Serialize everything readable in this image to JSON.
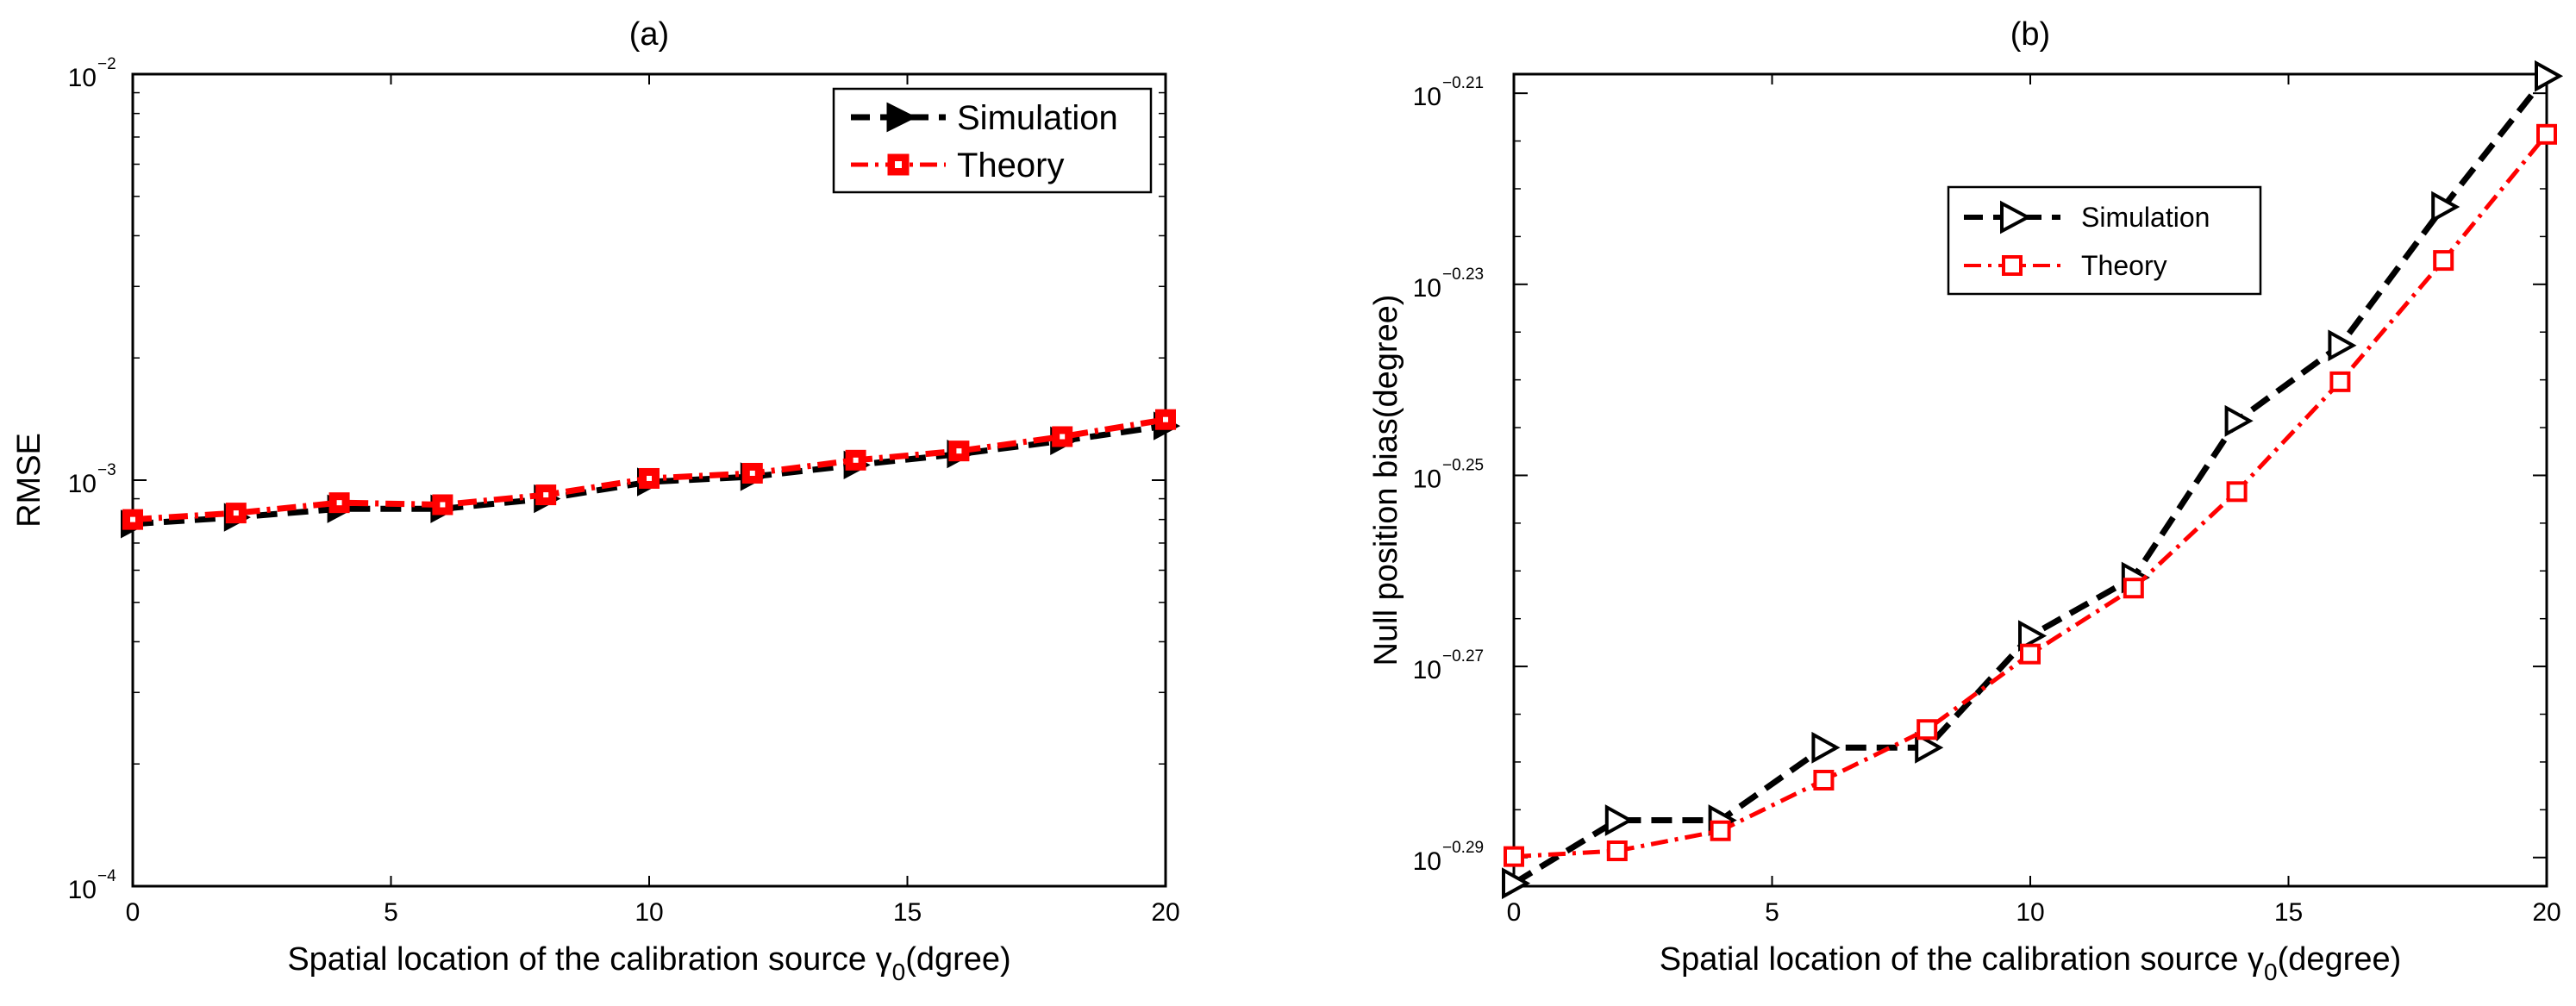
{
  "colors": {
    "simulation": "#000000",
    "theory": "#ff0000",
    "axes": "#000000",
    "background": "#ffffff"
  },
  "chart_data": [
    {
      "id": "a",
      "type": "line",
      "title": "(a)",
      "xlabel": "Spatial location of the calibration source γ",
      "xlabel_subscript": "0",
      "xlabel_suffix": "(dgree)",
      "ylabel": "RMSE",
      "xscale": "linear",
      "yscale": "log",
      "xlim": [
        0,
        20
      ],
      "ylim": [
        0.0001,
        0.01
      ],
      "xticks": [
        0,
        5,
        10,
        15,
        20
      ],
      "xtick_labels": [
        "0",
        "5",
        "10",
        "15",
        "20"
      ],
      "yticks": [
        0.0001,
        0.001,
        0.01
      ],
      "ytick_bases": [
        "10",
        "10",
        "10"
      ],
      "ytick_exponents": [
        "−4",
        "−3",
        "−2"
      ],
      "grid": false,
      "legend_position": "top-right",
      "series": [
        {
          "name": "Simulation",
          "marker": "triangle-right",
          "line_style": "dashed",
          "color": "#000000",
          "x": [
            0,
            2,
            4,
            6,
            8,
            10,
            12,
            14,
            16,
            18,
            20
          ],
          "y": [
            0.00078,
            0.00081,
            0.00085,
            0.00085,
            0.0009,
            0.00099,
            0.00102,
            0.00109,
            0.00116,
            0.00125,
            0.00136
          ]
        },
        {
          "name": "Theory",
          "marker": "square",
          "line_style": "dash-dot",
          "color": "#ff0000",
          "x": [
            0,
            2,
            4,
            6,
            8,
            10,
            12,
            14,
            16,
            18,
            20
          ],
          "y": [
            0.0008,
            0.00083,
            0.00088,
            0.00087,
            0.00092,
            0.00101,
            0.00104,
            0.00112,
            0.00118,
            0.00128,
            0.00141
          ]
        }
      ]
    },
    {
      "id": "b",
      "type": "line",
      "title": "(b)",
      "xlabel": "Spatial location of the calibration source γ",
      "xlabel_subscript": "0",
      "xlabel_suffix": "(degree)",
      "ylabel": "Null position bias(degree)",
      "xscale": "linear",
      "yscale": "log",
      "xlim": [
        0,
        20
      ],
      "ylim_exponent": [
        -0.293,
        -0.208
      ],
      "xticks": [
        0,
        5,
        10,
        15,
        20
      ],
      "xtick_labels": [
        "0",
        "5",
        "10",
        "15",
        "20"
      ],
      "ytick_exponent_values": [
        -0.29,
        -0.27,
        -0.25,
        -0.23,
        -0.21
      ],
      "ytick_bases": [
        "10",
        "10",
        "10",
        "10",
        "10"
      ],
      "ytick_exponents": [
        "−0.29",
        "−0.27",
        "−0.25",
        "−0.23",
        "−0.21"
      ],
      "grid": false,
      "legend_position": "top-center",
      "series": [
        {
          "name": "Simulation",
          "marker": "open-triangle-right",
          "line_style": "dashed",
          "color": "#000000",
          "x": [
            0,
            2,
            4,
            6,
            8,
            10,
            12,
            14,
            16,
            18,
            20
          ],
          "y_exponent": [
            -0.2927,
            -0.2861,
            -0.2861,
            -0.2785,
            -0.2785,
            -0.2668,
            -0.2607,
            -0.2443,
            -0.2364,
            -0.2219,
            -0.2082
          ]
        },
        {
          "name": "Theory",
          "marker": "open-square",
          "line_style": "dash-dot",
          "color": "#ff0000",
          "x": [
            0,
            2,
            4,
            6,
            8,
            10,
            12,
            14,
            16,
            18,
            20
          ],
          "y_exponent": [
            -0.2899,
            -0.2893,
            -0.2872,
            -0.2819,
            -0.2766,
            -0.2687,
            -0.2618,
            -0.2517,
            -0.2402,
            -0.2275,
            -0.2143
          ]
        }
      ]
    }
  ]
}
